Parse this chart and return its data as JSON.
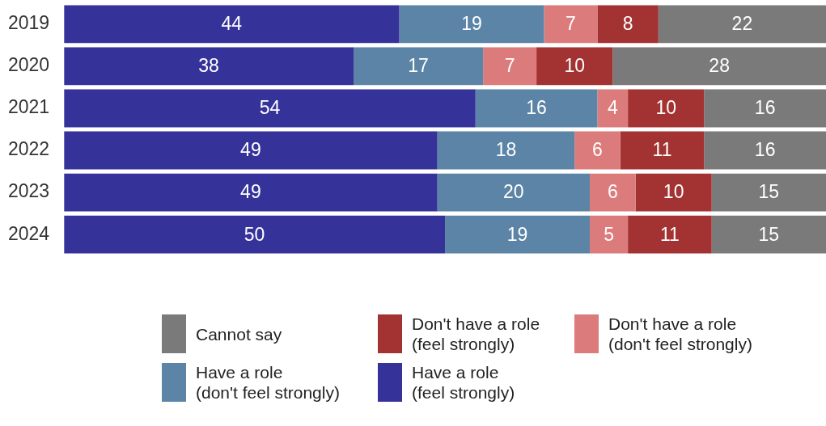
{
  "chart_data": {
    "type": "bar",
    "orientation": "horizontal",
    "stacked": true,
    "data_labels": true,
    "legend": "bottom",
    "categories": [
      "2019",
      "2020",
      "2021",
      "2022",
      "2023",
      "2024"
    ],
    "series": [
      {
        "name": "Have a role (feel strongly)",
        "color": "#35339a",
        "values": [
          44,
          38,
          54,
          49,
          49,
          50
        ]
      },
      {
        "name": "Have a role (don't feel strongly)",
        "color": "#5b84a6",
        "values": [
          19,
          17,
          16,
          18,
          20,
          19
        ]
      },
      {
        "name": "Don't have a role (don't feel strongly)",
        "color": "#dc7b7b",
        "values": [
          7,
          7,
          4,
          6,
          6,
          5
        ]
      },
      {
        "name": "Don't have a role (feel strongly)",
        "color": "#a33232",
        "values": [
          8,
          10,
          10,
          11,
          10,
          11
        ]
      },
      {
        "name": "Cannot say",
        "color": "#7a7a7a",
        "values": [
          22,
          28,
          16,
          16,
          15,
          15
        ]
      }
    ]
  }
}
